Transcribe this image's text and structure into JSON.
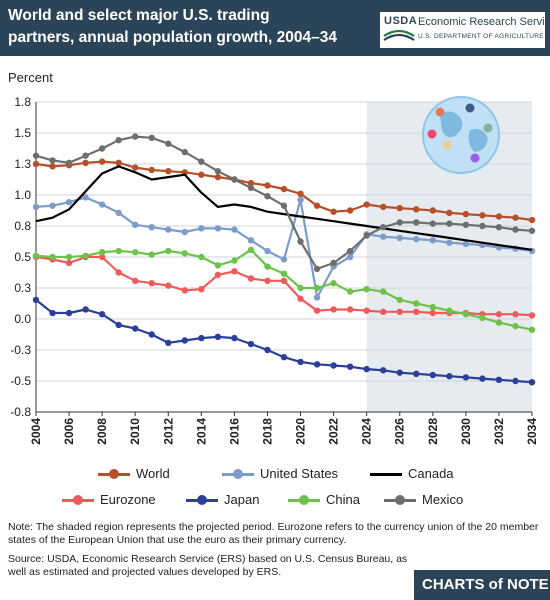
{
  "header": {
    "title": "World and select major U.S. trading partners, annual population growth, 2004–34",
    "brand_short": "USDA",
    "brand_name": "Economic Research Service",
    "brand_dept": "U.S. DEPARTMENT OF AGRICULTURE"
  },
  "footer": {
    "note": "Note: The shaded region represents the projected period. Eurozone refers to the currency union of the 20 member states of the European Union that use the euro as their primary currency.",
    "source": "Source: USDA, Economic Research Service (ERS) based on U.S. Census Bureau, as well as estimated and projected values developed by ERS.",
    "brand": "CHARTS of NOTE"
  },
  "chart_data": {
    "type": "line",
    "ylabel": "Percent",
    "xlabel": "",
    "ylim": [
      -0.8,
      1.8
    ],
    "y_ticks": [
      "1.8",
      "1.5",
      "1.3",
      "1.0",
      "0.8",
      "0.5",
      "0.3",
      "0.0",
      "-0.3",
      "-0.5",
      "-0.8"
    ],
    "x_ticks": [
      "2004",
      "2006",
      "2008",
      "2010",
      "2012",
      "2014",
      "2016",
      "2018",
      "2020",
      "2022",
      "2024",
      "2026",
      "2028",
      "2030",
      "2032",
      "2034"
    ],
    "projected_from": 2024,
    "projected_to": 2034,
    "grid": true,
    "legend_position": "bottom",
    "x": [
      2004,
      2005,
      2006,
      2007,
      2008,
      2009,
      2010,
      2011,
      2012,
      2013,
      2014,
      2015,
      2016,
      2017,
      2018,
      2019,
      2020,
      2021,
      2022,
      2023,
      2024,
      2025,
      2026,
      2027,
      2028,
      2029,
      2030,
      2031,
      2032,
      2033,
      2034
    ],
    "series": [
      {
        "name": "World",
        "color": "#b5502a",
        "values": [
          1.28,
          1.26,
          1.27,
          1.29,
          1.3,
          1.29,
          1.25,
          1.23,
          1.22,
          1.21,
          1.19,
          1.17,
          1.15,
          1.12,
          1.1,
          1.07,
          1.03,
          0.93,
          0.88,
          0.89,
          0.94,
          0.92,
          0.91,
          0.9,
          0.89,
          0.87,
          0.86,
          0.85,
          0.84,
          0.83,
          0.81
        ]
      },
      {
        "name": "United States",
        "color": "#7c9dc9",
        "values": [
          0.92,
          0.93,
          0.96,
          1.0,
          0.94,
          0.87,
          0.77,
          0.75,
          0.73,
          0.71,
          0.74,
          0.74,
          0.73,
          0.64,
          0.55,
          0.48,
          0.98,
          0.16,
          0.42,
          0.5,
          0.69,
          0.67,
          0.66,
          0.65,
          0.64,
          0.62,
          0.61,
          0.6,
          0.58,
          0.57,
          0.55
        ]
      },
      {
        "name": "Canada",
        "color": "#000000",
        "values": [
          0.8,
          0.83,
          0.9,
          1.05,
          1.2,
          1.26,
          1.21,
          1.15,
          1.17,
          1.19,
          1.04,
          0.92,
          0.94,
          0.92,
          0.88,
          0.86,
          0.84,
          0.82,
          0.8,
          0.78,
          0.76,
          0.74,
          0.72,
          0.7,
          0.68,
          0.66,
          0.64,
          0.62,
          0.6,
          0.58,
          0.56
        ]
      },
      {
        "name": "Eurozone",
        "color": "#ef5a5a",
        "values": [
          0.5,
          0.48,
          0.45,
          0.5,
          0.5,
          0.37,
          0.3,
          0.28,
          0.26,
          0.22,
          0.23,
          0.35,
          0.38,
          0.32,
          0.3,
          0.3,
          0.15,
          0.05,
          0.06,
          0.06,
          0.05,
          0.04,
          0.04,
          0.04,
          0.03,
          0.03,
          0.03,
          0.02,
          0.02,
          0.02,
          0.01
        ]
      },
      {
        "name": "Japan",
        "color": "#2b3e9a",
        "values": [
          0.14,
          0.03,
          0.03,
          0.06,
          0.02,
          -0.07,
          -0.1,
          -0.15,
          -0.22,
          -0.2,
          -0.18,
          -0.17,
          -0.18,
          -0.23,
          -0.28,
          -0.34,
          -0.38,
          -0.4,
          -0.41,
          -0.42,
          -0.44,
          -0.45,
          -0.47,
          -0.48,
          -0.49,
          -0.5,
          -0.51,
          -0.52,
          -0.53,
          -0.54,
          -0.55
        ]
      },
      {
        "name": "China",
        "color": "#6cc24a",
        "values": [
          0.51,
          0.5,
          0.5,
          0.51,
          0.54,
          0.55,
          0.54,
          0.52,
          0.55,
          0.53,
          0.5,
          0.43,
          0.47,
          0.56,
          0.42,
          0.36,
          0.24,
          0.24,
          0.28,
          0.21,
          0.23,
          0.21,
          0.14,
          0.11,
          0.08,
          0.05,
          0.02,
          -0.01,
          -0.05,
          -0.08,
          -0.11
        ]
      },
      {
        "name": "Mexico",
        "color": "#6e6e6e",
        "values": [
          1.35,
          1.31,
          1.29,
          1.35,
          1.41,
          1.48,
          1.51,
          1.5,
          1.45,
          1.38,
          1.3,
          1.22,
          1.15,
          1.08,
          1.01,
          0.93,
          0.63,
          0.4,
          0.45,
          0.55,
          0.68,
          0.75,
          0.79,
          0.79,
          0.78,
          0.78,
          0.77,
          0.76,
          0.75,
          0.73,
          0.72
        ]
      }
    ]
  }
}
